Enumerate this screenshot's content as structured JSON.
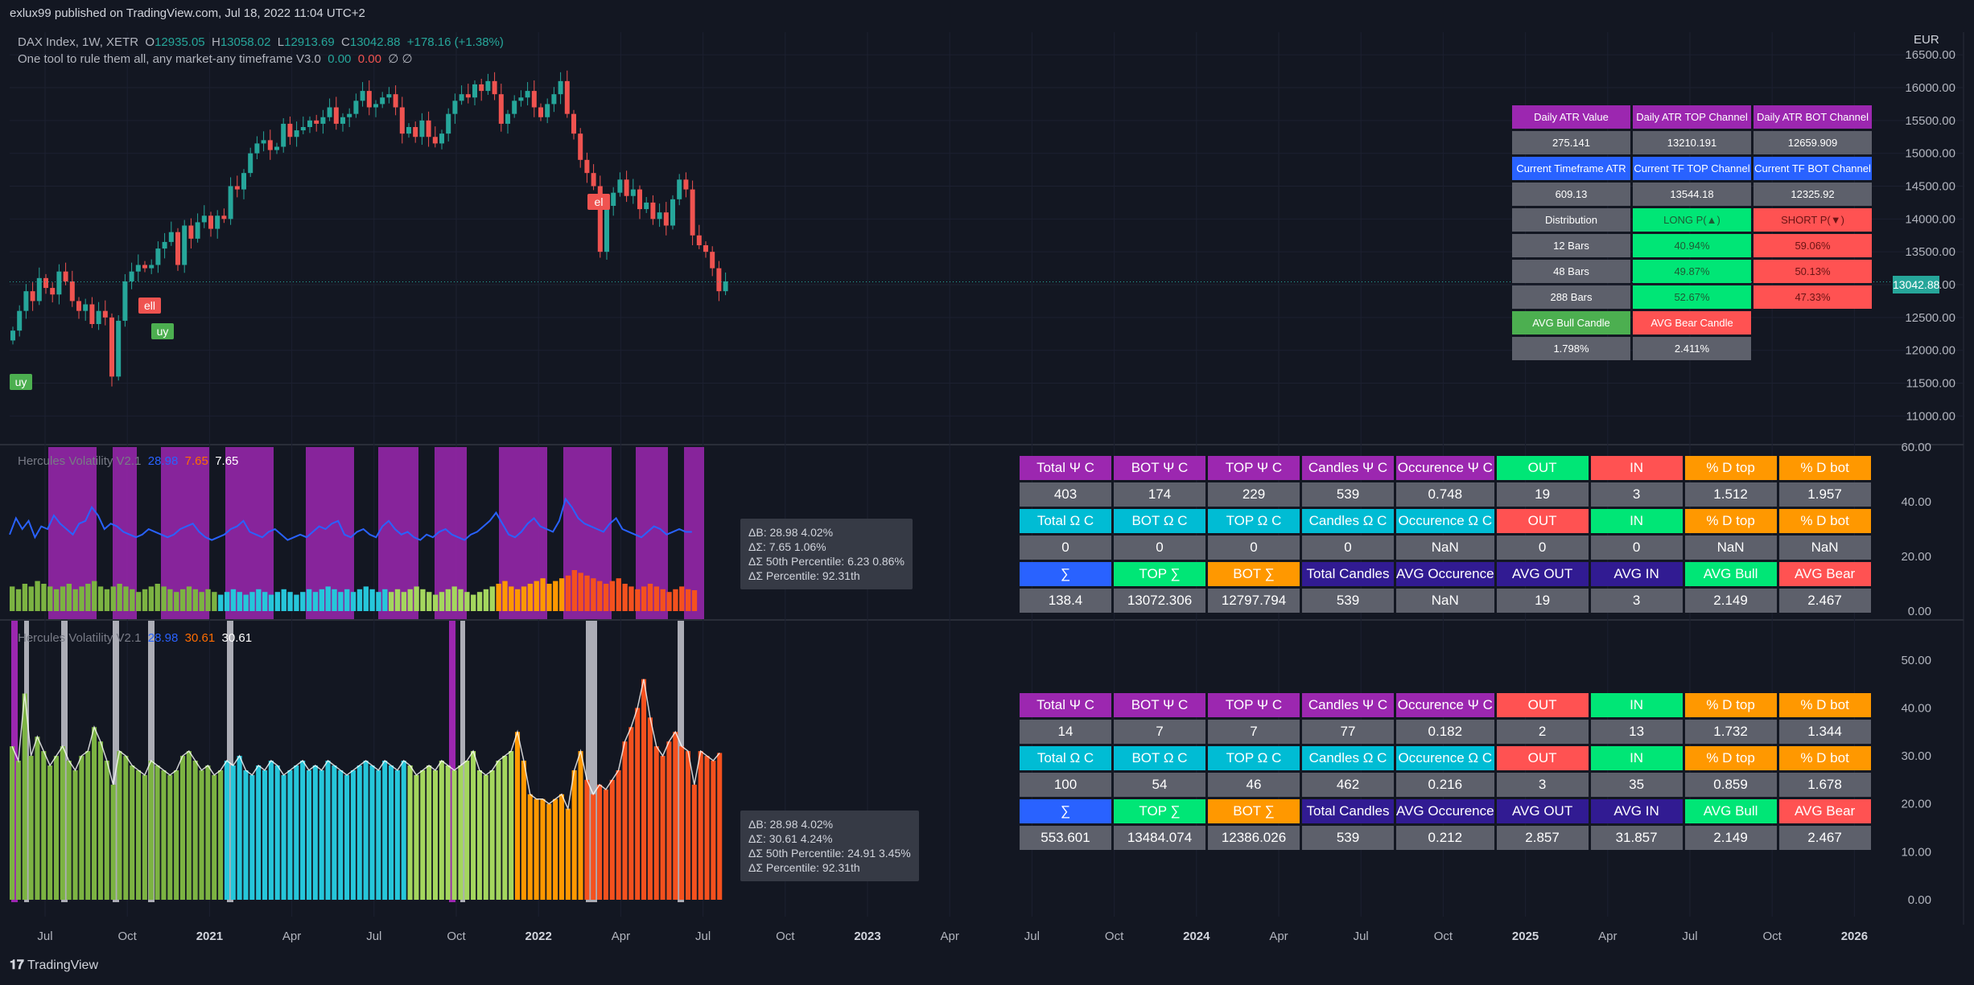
{
  "header": {
    "published": "exlux99 published on TradingView.com, Jul 18, 2022 11:04 UTC+2",
    "symbol": "DAX Index, 1W, XETR",
    "open_label": "O",
    "open": "12935.05",
    "high_label": "H",
    "high": "13058.02",
    "low_label": "L",
    "low": "12913.69",
    "close_label": "C",
    "close": "13042.88",
    "change": "+178.16 (+1.38%)",
    "indicator": "One tool to rule them all, any market-any timeframe V3.0",
    "ind_v1": "0.00",
    "ind_v2": "0.00",
    "ind_v3": "∅ ∅"
  },
  "currency": "EUR",
  "last_price": "13042.88",
  "price_axis": [
    "16500.00",
    "16000.00",
    "15500.00",
    "15000.00",
    "14500.00",
    "14000.00",
    "13500.00",
    "13000.00",
    "12500.00",
    "12000.00",
    "11500.00",
    "11000.00"
  ],
  "pane2_axis": [
    "60.00",
    "40.00",
    "20.00",
    "0.00"
  ],
  "pane3_axis": [
    "50.00",
    "40.00",
    "30.00",
    "20.00",
    "10.00",
    "0.00"
  ],
  "time_axis": [
    {
      "label": "Jul",
      "bold": false
    },
    {
      "label": "Oct",
      "bold": false
    },
    {
      "label": "2021",
      "bold": true
    },
    {
      "label": "Apr",
      "bold": false
    },
    {
      "label": "Jul",
      "bold": false
    },
    {
      "label": "Oct",
      "bold": false
    },
    {
      "label": "2022",
      "bold": true
    },
    {
      "label": "Apr",
      "bold": false
    },
    {
      "label": "Jul",
      "bold": false
    },
    {
      "label": "Oct",
      "bold": false
    },
    {
      "label": "2023",
      "bold": true
    },
    {
      "label": "Apr",
      "bold": false
    },
    {
      "label": "Jul",
      "bold": false
    },
    {
      "label": "Oct",
      "bold": false
    },
    {
      "label": "2024",
      "bold": true
    },
    {
      "label": "Apr",
      "bold": false
    },
    {
      "label": "Jul",
      "bold": false
    },
    {
      "label": "Oct",
      "bold": false
    },
    {
      "label": "2025",
      "bold": true
    },
    {
      "label": "Apr",
      "bold": false
    },
    {
      "label": "Jul",
      "bold": false
    },
    {
      "label": "Oct",
      "bold": false
    },
    {
      "label": "2026",
      "bold": true
    }
  ],
  "signals": [
    "uy",
    "ell",
    "uy",
    "el"
  ],
  "pane2_legend": {
    "name": "Hercules Volatility V2.1",
    "v1": "28.98",
    "v2": "7.65",
    "v3": "7.65"
  },
  "pane3_legend": {
    "name": "Hercules Volatility V2.1",
    "v1": "28.98",
    "v2": "30.61",
    "v3": "30.61"
  },
  "atr_table": [
    [
      {
        "t": "Daily ATR Value",
        "bg": "#9c27b0",
        "fg": "#ffffff"
      },
      {
        "t": "Daily ATR TOP Channel",
        "bg": "#9c27b0",
        "fg": "#ffffff"
      },
      {
        "t": "Daily ATR BOT Channel",
        "bg": "#9c27b0",
        "fg": "#ffffff"
      }
    ],
    [
      {
        "t": "275.141",
        "bg": "#5d606b",
        "fg": "#ffffff"
      },
      {
        "t": "13210.191",
        "bg": "#5d606b",
        "fg": "#ffffff"
      },
      {
        "t": "12659.909",
        "bg": "#5d606b",
        "fg": "#ffffff"
      }
    ],
    [
      {
        "t": "Current Timeframe ATR",
        "bg": "#2962ff",
        "fg": "#ffffff"
      },
      {
        "t": "Current TF TOP Channel",
        "bg": "#2962ff",
        "fg": "#ffffff"
      },
      {
        "t": "Current TF BOT Channel",
        "bg": "#2962ff",
        "fg": "#ffffff"
      }
    ],
    [
      {
        "t": "609.13",
        "bg": "#5d606b",
        "fg": "#ffffff"
      },
      {
        "t": "13544.18",
        "bg": "#5d606b",
        "fg": "#ffffff"
      },
      {
        "t": "12325.92",
        "bg": "#5d606b",
        "fg": "#ffffff"
      }
    ],
    [
      {
        "t": "Distribution",
        "bg": "#5d606b",
        "fg": "#ffffff"
      },
      {
        "t": "LONG P(▲)",
        "bg": "#00e676",
        "fg": "#1e5b35"
      },
      {
        "t": "SHORT P(▼)",
        "bg": "#ff5252",
        "fg": "#6b1414"
      }
    ],
    [
      {
        "t": "12 Bars",
        "bg": "#5d606b",
        "fg": "#ffffff"
      },
      {
        "t": "40.94%",
        "bg": "#00e676",
        "fg": "#1e5b35"
      },
      {
        "t": "59.06%",
        "bg": "#ff5252",
        "fg": "#6b1414"
      }
    ],
    [
      {
        "t": "48 Bars",
        "bg": "#5d606b",
        "fg": "#ffffff"
      },
      {
        "t": "49.87%",
        "bg": "#00e676",
        "fg": "#1e5b35"
      },
      {
        "t": "50.13%",
        "bg": "#ff5252",
        "fg": "#6b1414"
      }
    ],
    [
      {
        "t": "288 Bars",
        "bg": "#5d606b",
        "fg": "#ffffff"
      },
      {
        "t": "52.67%",
        "bg": "#00e676",
        "fg": "#1e5b35"
      },
      {
        "t": "47.33%",
        "bg": "#ff5252",
        "fg": "#6b1414"
      }
    ],
    [
      {
        "t": "AVG Bull Candle",
        "bg": "#4caf50",
        "fg": "#ffffff"
      },
      {
        "t": "AVG Bear Candle",
        "bg": "#ff5252",
        "fg": "#ffffff"
      }
    ],
    [
      {
        "t": "1.798%",
        "bg": "#5d606b",
        "fg": "#ffffff"
      },
      {
        "t": "2.411%",
        "bg": "#5d606b",
        "fg": "#ffffff"
      }
    ]
  ],
  "stats_table_1": [
    [
      {
        "t": "Total Ψ C",
        "bg": "#9c27b0"
      },
      {
        "t": "BOT Ψ C",
        "bg": "#9c27b0"
      },
      {
        "t": "TOP Ψ C",
        "bg": "#9c27b0"
      },
      {
        "t": "Candles Ψ C",
        "bg": "#9c27b0"
      },
      {
        "t": "Occurence Ψ C",
        "bg": "#9c27b0"
      },
      {
        "t": "OUT",
        "bg": "#00e676"
      },
      {
        "t": "IN",
        "bg": "#ff5252"
      },
      {
        "t": "% D top",
        "bg": "#ff9800"
      },
      {
        "t": "% D bot",
        "bg": "#ff9800"
      }
    ],
    [
      {
        "t": "403",
        "bg": "#5d606b"
      },
      {
        "t": "174",
        "bg": "#5d606b"
      },
      {
        "t": "229",
        "bg": "#5d606b"
      },
      {
        "t": "539",
        "bg": "#5d606b"
      },
      {
        "t": "0.748",
        "bg": "#5d606b"
      },
      {
        "t": "19",
        "bg": "#5d606b"
      },
      {
        "t": "3",
        "bg": "#5d606b"
      },
      {
        "t": "1.512",
        "bg": "#5d606b"
      },
      {
        "t": "1.957",
        "bg": "#5d606b"
      }
    ],
    [
      {
        "t": "Total Ω C",
        "bg": "#00bcd4"
      },
      {
        "t": "BOT Ω C",
        "bg": "#00bcd4"
      },
      {
        "t": "TOP Ω C",
        "bg": "#00bcd4"
      },
      {
        "t": "Candles Ω C",
        "bg": "#00bcd4"
      },
      {
        "t": "Occurence Ω C",
        "bg": "#00bcd4"
      },
      {
        "t": "OUT",
        "bg": "#ff5252"
      },
      {
        "t": "IN",
        "bg": "#00e676"
      },
      {
        "t": "% D top",
        "bg": "#ff9800"
      },
      {
        "t": "% D bot",
        "bg": "#ff9800"
      }
    ],
    [
      {
        "t": "0",
        "bg": "#5d606b"
      },
      {
        "t": "0",
        "bg": "#5d606b"
      },
      {
        "t": "0",
        "bg": "#5d606b"
      },
      {
        "t": "0",
        "bg": "#5d606b"
      },
      {
        "t": "NaN",
        "bg": "#5d606b"
      },
      {
        "t": "0",
        "bg": "#5d606b"
      },
      {
        "t": "0",
        "bg": "#5d606b"
      },
      {
        "t": "NaN",
        "bg": "#5d606b"
      },
      {
        "t": "NaN",
        "bg": "#5d606b"
      }
    ],
    [
      {
        "t": "∑",
        "bg": "#2962ff"
      },
      {
        "t": "TOP ∑",
        "bg": "#00e676"
      },
      {
        "t": "BOT ∑",
        "bg": "#ff9800"
      },
      {
        "t": "Total Candles",
        "bg": "#311b92"
      },
      {
        "t": "AVG Occurence",
        "bg": "#311b92"
      },
      {
        "t": "AVG OUT",
        "bg": "#311b92"
      },
      {
        "t": "AVG IN",
        "bg": "#311b92"
      },
      {
        "t": "AVG Bull",
        "bg": "#00e676"
      },
      {
        "t": "AVG Bear",
        "bg": "#ff5252"
      }
    ],
    [
      {
        "t": "138.4",
        "bg": "#5d606b"
      },
      {
        "t": "13072.306",
        "bg": "#5d606b"
      },
      {
        "t": "12797.794",
        "bg": "#5d606b"
      },
      {
        "t": "539",
        "bg": "#5d606b"
      },
      {
        "t": "NaN",
        "bg": "#5d606b"
      },
      {
        "t": "19",
        "bg": "#5d606b"
      },
      {
        "t": "3",
        "bg": "#5d606b"
      },
      {
        "t": "2.149",
        "bg": "#5d606b"
      },
      {
        "t": "2.467",
        "bg": "#5d606b"
      }
    ]
  ],
  "stats_table_2": [
    [
      {
        "t": "Total Ψ C",
        "bg": "#9c27b0"
      },
      {
        "t": "BOT Ψ C",
        "bg": "#9c27b0"
      },
      {
        "t": "TOP Ψ C",
        "bg": "#9c27b0"
      },
      {
        "t": "Candles Ψ C",
        "bg": "#9c27b0"
      },
      {
        "t": "Occurence Ψ C",
        "bg": "#9c27b0"
      },
      {
        "t": "OUT",
        "bg": "#ff5252"
      },
      {
        "t": "IN",
        "bg": "#00e676"
      },
      {
        "t": "% D top",
        "bg": "#ff9800"
      },
      {
        "t": "% D bot",
        "bg": "#ff9800"
      }
    ],
    [
      {
        "t": "14",
        "bg": "#5d606b"
      },
      {
        "t": "7",
        "bg": "#5d606b"
      },
      {
        "t": "7",
        "bg": "#5d606b"
      },
      {
        "t": "77",
        "bg": "#5d606b"
      },
      {
        "t": "0.182",
        "bg": "#5d606b"
      },
      {
        "t": "2",
        "bg": "#5d606b"
      },
      {
        "t": "13",
        "bg": "#5d606b"
      },
      {
        "t": "1.732",
        "bg": "#5d606b"
      },
      {
        "t": "1.344",
        "bg": "#5d606b"
      }
    ],
    [
      {
        "t": "Total Ω C",
        "bg": "#00bcd4"
      },
      {
        "t": "BOT Ω C",
        "bg": "#00bcd4"
      },
      {
        "t": "TOP Ω C",
        "bg": "#00bcd4"
      },
      {
        "t": "Candles Ω C",
        "bg": "#00bcd4"
      },
      {
        "t": "Occurence Ω C",
        "bg": "#00bcd4"
      },
      {
        "t": "OUT",
        "bg": "#ff5252"
      },
      {
        "t": "IN",
        "bg": "#00e676"
      },
      {
        "t": "% D top",
        "bg": "#ff9800"
      },
      {
        "t": "% D bot",
        "bg": "#ff9800"
      }
    ],
    [
      {
        "t": "100",
        "bg": "#5d606b"
      },
      {
        "t": "54",
        "bg": "#5d606b"
      },
      {
        "t": "46",
        "bg": "#5d606b"
      },
      {
        "t": "462",
        "bg": "#5d606b"
      },
      {
        "t": "0.216",
        "bg": "#5d606b"
      },
      {
        "t": "3",
        "bg": "#5d606b"
      },
      {
        "t": "35",
        "bg": "#5d606b"
      },
      {
        "t": "0.859",
        "bg": "#5d606b"
      },
      {
        "t": "1.678",
        "bg": "#5d606b"
      }
    ],
    [
      {
        "t": "∑",
        "bg": "#2962ff"
      },
      {
        "t": "TOP ∑",
        "bg": "#00e676"
      },
      {
        "t": "BOT ∑",
        "bg": "#ff9800"
      },
      {
        "t": "Total Candles",
        "bg": "#311b92"
      },
      {
        "t": "AVG Occurence",
        "bg": "#311b92"
      },
      {
        "t": "AVG OUT",
        "bg": "#311b92"
      },
      {
        "t": "AVG IN",
        "bg": "#311b92"
      },
      {
        "t": "AVG Bull",
        "bg": "#00e676"
      },
      {
        "t": "AVG Bear",
        "bg": "#ff5252"
      }
    ],
    [
      {
        "t": "553.601",
        "bg": "#5d606b"
      },
      {
        "t": "13484.074",
        "bg": "#5d606b"
      },
      {
        "t": "12386.026",
        "bg": "#5d606b"
      },
      {
        "t": "539",
        "bg": "#5d606b"
      },
      {
        "t": "0.212",
        "bg": "#5d606b"
      },
      {
        "t": "2.857",
        "bg": "#5d606b"
      },
      {
        "t": "31.857",
        "bg": "#5d606b"
      },
      {
        "t": "2.149",
        "bg": "#5d606b"
      },
      {
        "t": "2.467",
        "bg": "#5d606b"
      }
    ]
  ],
  "info_box_1": [
    "ΔB: 28.98  4.02%",
    "ΔΣ: 7.65  1.06%",
    "ΔΣ 50th Percentile: 6.23  0.86%",
    "ΔΣ Percentile: 92.31th"
  ],
  "info_box_2": [
    "ΔB: 28.98  4.02%",
    "ΔΣ: 30.61  4.24%",
    "ΔΣ 50th Percentile: 24.91  3.45%",
    "ΔΣ Percentile: 92.31th"
  ],
  "footer": "TradingView",
  "chart_data": [
    {
      "type": "candlestick",
      "title": "DAX Index, 1W, XETR",
      "ylim": [
        10600,
        16600
      ],
      "closes": [
        12300,
        12600,
        12900,
        12750,
        13100,
        12950,
        12850,
        13200,
        13050,
        12750,
        12600,
        12700,
        12400,
        12600,
        12500,
        11600,
        12450,
        13050,
        13200,
        13300,
        13250,
        13300,
        13550,
        13650,
        13800,
        13300,
        13900,
        13700,
        13950,
        14050,
        13850,
        14050,
        14000,
        14500,
        14450,
        14700,
        15000,
        15150,
        15200,
        15050,
        15100,
        15450,
        15250,
        15350,
        15400,
        15500,
        15450,
        15550,
        15700,
        15450,
        15550,
        15600,
        15800,
        15950,
        15700,
        15750,
        15850,
        15900,
        15700,
        15300,
        15400,
        15250,
        15500,
        15250,
        15150,
        15300,
        15600,
        15800,
        15900,
        15850,
        16050,
        15950,
        16100,
        15900,
        15450,
        15600,
        15800,
        15850,
        15950,
        15700,
        15550,
        15750,
        15900,
        16100,
        15600,
        15300,
        14900,
        14700,
        14500,
        13500,
        14200,
        14400,
        14600,
        14350,
        14450,
        14150,
        14250,
        14000,
        14100,
        13900,
        14300,
        14600,
        14450,
        13750,
        13600,
        13500,
        13250,
        12900,
        13050
      ],
      "series": [
        {
          "name": "DAX Index",
          "values": "closes"
        }
      ]
    },
    {
      "type": "area",
      "title": "Hercules Volatility V2.1",
      "ylim": [
        0,
        60
      ],
      "values": [
        9,
        8,
        10,
        9,
        11,
        10,
        9,
        8,
        9,
        10,
        8,
        9,
        10,
        11,
        9,
        8,
        9,
        10,
        9,
        8,
        7,
        8,
        9,
        10,
        9,
        8,
        7,
        8,
        9,
        8,
        7,
        8,
        7,
        6,
        7,
        8,
        7,
        6,
        7,
        8,
        7,
        6,
        7,
        8,
        7,
        6,
        7,
        8,
        7,
        8,
        9,
        8,
        7,
        8,
        7,
        8,
        9,
        8,
        7,
        8,
        7,
        8,
        7,
        8,
        9,
        8,
        7,
        6,
        7,
        8,
        9,
        8,
        7,
        6,
        7,
        8,
        9,
        10,
        11,
        9,
        8,
        9,
        10,
        11,
        12,
        10,
        11,
        12,
        13,
        15,
        14,
        13,
        12,
        11,
        10,
        11,
        12,
        10,
        9,
        8,
        9,
        10,
        9,
        8,
        7,
        8,
        9,
        8,
        7.65
      ],
      "line_values": [
        28,
        34,
        30,
        33,
        27,
        31,
        30,
        35,
        32,
        30,
        28,
        32,
        33,
        38,
        35,
        30,
        32,
        31,
        29,
        28,
        27,
        28,
        30,
        29,
        28,
        27,
        28,
        30,
        31,
        32,
        29,
        27,
        26,
        27,
        28,
        30,
        31,
        33,
        29,
        28,
        27,
        29,
        30,
        28,
        26,
        27,
        28,
        27,
        29,
        31,
        30,
        32,
        33,
        28,
        27,
        29,
        30,
        28,
        27,
        31,
        33,
        30,
        28,
        29,
        27,
        26,
        28,
        27,
        29,
        30,
        28,
        27,
        26,
        28,
        29,
        31,
        33,
        36,
        32,
        28,
        27,
        29,
        32,
        34,
        31,
        30,
        29,
        33,
        41,
        38,
        34,
        32,
        31,
        30,
        29,
        32,
        34,
        30,
        29,
        28,
        27,
        29,
        31,
        30,
        28,
        29,
        30,
        29,
        28.98
      ],
      "series": [
        {
          "name": "Hercules Volatility V2.1",
          "values": "values"
        }
      ]
    },
    {
      "type": "bar",
      "title": "Hercules Volatility V2.1",
      "ylim": [
        0,
        57
      ],
      "values": [
        32,
        29,
        43,
        30,
        34,
        31,
        28,
        30,
        32,
        29,
        27,
        30,
        31,
        36,
        33,
        29,
        24,
        31,
        30,
        28,
        27,
        26,
        29,
        28,
        27,
        26,
        27,
        30,
        31,
        29,
        27,
        28,
        26,
        27,
        29,
        28,
        30,
        27,
        26,
        28,
        27,
        29,
        28,
        26,
        27,
        28,
        29,
        27,
        28,
        27,
        29,
        28,
        27,
        26,
        27,
        28,
        29,
        28,
        27,
        29,
        28,
        27,
        29,
        28,
        26,
        27,
        28,
        27,
        29,
        28,
        27,
        28,
        29,
        31,
        27,
        26,
        27,
        29,
        30,
        31,
        35,
        29,
        22,
        21,
        21,
        20,
        21,
        22,
        19,
        27,
        31,
        25,
        22,
        24,
        23,
        25,
        27,
        33,
        36,
        40,
        46,
        38,
        32,
        30,
        33,
        35,
        32,
        31,
        24,
        31,
        30,
        29,
        30.61
      ],
      "series": [
        {
          "name": "Hercules Volatility V2.1",
          "values": "values"
        }
      ]
    }
  ]
}
